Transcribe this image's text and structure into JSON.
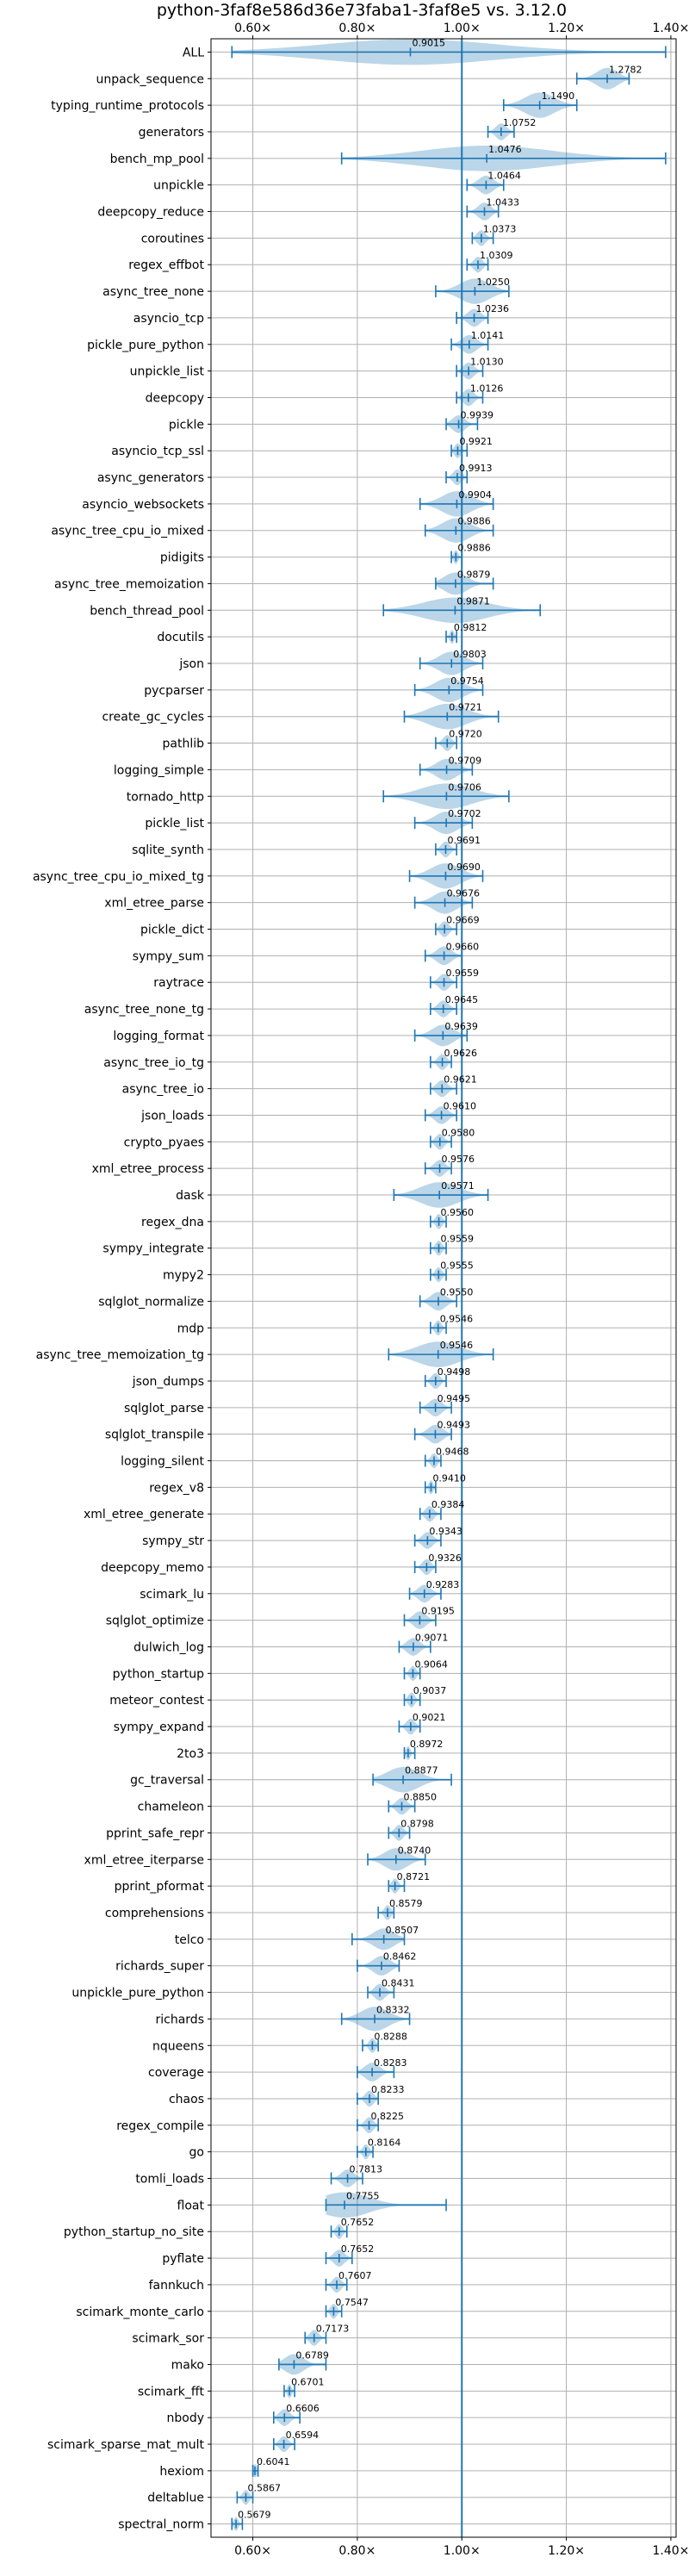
{
  "chart_data": {
    "type": "violin",
    "title": "python-3faf8e586d36e73faba1-3faf8e5 vs. 3.12.0",
    "xlabel": "",
    "ylabel": "",
    "xlim": [
      0.52,
      1.41
    ],
    "xticks": [
      0.6,
      0.8,
      1.0,
      1.2,
      1.4
    ],
    "xtick_labels": [
      "0.60×",
      "0.80×",
      "1.00×",
      "1.20×",
      "1.40×"
    ],
    "reference_x": 1.0,
    "grid": true,
    "xaxis_ticks_top_and_bottom": true,
    "color": "#1f77b4",
    "series": [
      {
        "name": "ALL",
        "value": 0.9015,
        "label": "0.9015",
        "low": 0.56,
        "high": 1.39
      },
      {
        "name": "unpack_sequence",
        "value": 1.2782,
        "label": "1.2782",
        "low": 1.22,
        "high": 1.32
      },
      {
        "name": "typing_runtime_protocols",
        "value": 1.149,
        "label": "1.1490",
        "low": 1.08,
        "high": 1.22
      },
      {
        "name": "generators",
        "value": 1.0752,
        "label": "1.0752",
        "low": 1.05,
        "high": 1.1
      },
      {
        "name": "bench_mp_pool",
        "value": 1.0476,
        "label": "1.0476",
        "low": 0.77,
        "high": 1.39
      },
      {
        "name": "unpickle",
        "value": 1.0464,
        "label": "1.0464",
        "low": 1.01,
        "high": 1.08
      },
      {
        "name": "deepcopy_reduce",
        "value": 1.0433,
        "label": "1.0433",
        "low": 1.01,
        "high": 1.07
      },
      {
        "name": "coroutines",
        "value": 1.0373,
        "label": "1.0373",
        "low": 1.02,
        "high": 1.06
      },
      {
        "name": "regex_effbot",
        "value": 1.0309,
        "label": "1.0309",
        "low": 1.01,
        "high": 1.05
      },
      {
        "name": "async_tree_none",
        "value": 1.025,
        "label": "1.0250",
        "low": 0.95,
        "high": 1.09
      },
      {
        "name": "asyncio_tcp",
        "value": 1.0236,
        "label": "1.0236",
        "low": 0.99,
        "high": 1.05
      },
      {
        "name": "pickle_pure_python",
        "value": 1.0141,
        "label": "1.0141",
        "low": 0.98,
        "high": 1.05
      },
      {
        "name": "unpickle_list",
        "value": 1.013,
        "label": "1.0130",
        "low": 0.99,
        "high": 1.04
      },
      {
        "name": "deepcopy",
        "value": 1.0126,
        "label": "1.0126",
        "low": 0.99,
        "high": 1.04
      },
      {
        "name": "pickle",
        "value": 0.9939,
        "label": "0.9939",
        "low": 0.97,
        "high": 1.03
      },
      {
        "name": "asyncio_tcp_ssl",
        "value": 0.9921,
        "label": "0.9921",
        "low": 0.98,
        "high": 1.01
      },
      {
        "name": "async_generators",
        "value": 0.9913,
        "label": "0.9913",
        "low": 0.97,
        "high": 1.01
      },
      {
        "name": "asyncio_websockets",
        "value": 0.9904,
        "label": "0.9904",
        "low": 0.92,
        "high": 1.06
      },
      {
        "name": "async_tree_cpu_io_mixed",
        "value": 0.9886,
        "label": "0.9886",
        "low": 0.93,
        "high": 1.06
      },
      {
        "name": "pidigits",
        "value": 0.9886,
        "label": "0.9886",
        "low": 0.98,
        "high": 1.0
      },
      {
        "name": "async_tree_memoization",
        "value": 0.9879,
        "label": "0.9879",
        "low": 0.95,
        "high": 1.06
      },
      {
        "name": "bench_thread_pool",
        "value": 0.9871,
        "label": "0.9871",
        "low": 0.85,
        "high": 1.15
      },
      {
        "name": "docutils",
        "value": 0.9812,
        "label": "0.9812",
        "low": 0.97,
        "high": 0.99
      },
      {
        "name": "json",
        "value": 0.9803,
        "label": "0.9803",
        "low": 0.92,
        "high": 1.04
      },
      {
        "name": "pycparser",
        "value": 0.9754,
        "label": "0.9754",
        "low": 0.91,
        "high": 1.04
      },
      {
        "name": "create_gc_cycles",
        "value": 0.9721,
        "label": "0.9721",
        "low": 0.89,
        "high": 1.07
      },
      {
        "name": "pathlib",
        "value": 0.972,
        "label": "0.9720",
        "low": 0.95,
        "high": 0.99
      },
      {
        "name": "logging_simple",
        "value": 0.9709,
        "label": "0.9709",
        "low": 0.92,
        "high": 1.02
      },
      {
        "name": "tornado_http",
        "value": 0.9706,
        "label": "0.9706",
        "low": 0.85,
        "high": 1.09
      },
      {
        "name": "pickle_list",
        "value": 0.9702,
        "label": "0.9702",
        "low": 0.91,
        "high": 1.02
      },
      {
        "name": "sqlite_synth",
        "value": 0.9691,
        "label": "0.9691",
        "low": 0.95,
        "high": 0.99
      },
      {
        "name": "async_tree_cpu_io_mixed_tg",
        "value": 0.969,
        "label": "0.9690",
        "low": 0.9,
        "high": 1.04
      },
      {
        "name": "xml_etree_parse",
        "value": 0.9676,
        "label": "0.9676",
        "low": 0.91,
        "high": 1.02
      },
      {
        "name": "pickle_dict",
        "value": 0.9669,
        "label": "0.9669",
        "low": 0.95,
        "high": 0.99
      },
      {
        "name": "sympy_sum",
        "value": 0.966,
        "label": "0.9660",
        "low": 0.93,
        "high": 1.0
      },
      {
        "name": "raytrace",
        "value": 0.9659,
        "label": "0.9659",
        "low": 0.94,
        "high": 0.99
      },
      {
        "name": "async_tree_none_tg",
        "value": 0.9645,
        "label": "0.9645",
        "low": 0.94,
        "high": 0.99
      },
      {
        "name": "logging_format",
        "value": 0.9639,
        "label": "0.9639",
        "low": 0.91,
        "high": 1.01
      },
      {
        "name": "async_tree_io_tg",
        "value": 0.9626,
        "label": "0.9626",
        "low": 0.94,
        "high": 0.98
      },
      {
        "name": "async_tree_io",
        "value": 0.9621,
        "label": "0.9621",
        "low": 0.94,
        "high": 0.99
      },
      {
        "name": "json_loads",
        "value": 0.961,
        "label": "0.9610",
        "low": 0.93,
        "high": 0.99
      },
      {
        "name": "crypto_pyaes",
        "value": 0.958,
        "label": "0.9580",
        "low": 0.94,
        "high": 0.98
      },
      {
        "name": "xml_etree_process",
        "value": 0.9576,
        "label": "0.9576",
        "low": 0.93,
        "high": 0.98
      },
      {
        "name": "dask",
        "value": 0.9571,
        "label": "0.9571",
        "low": 0.87,
        "high": 1.05
      },
      {
        "name": "regex_dna",
        "value": 0.956,
        "label": "0.9560",
        "low": 0.94,
        "high": 0.97
      },
      {
        "name": "sympy_integrate",
        "value": 0.9559,
        "label": "0.9559",
        "low": 0.94,
        "high": 0.97
      },
      {
        "name": "mypy2",
        "value": 0.9555,
        "label": "0.9555",
        "low": 0.94,
        "high": 0.97
      },
      {
        "name": "sqlglot_normalize",
        "value": 0.955,
        "label": "0.9550",
        "low": 0.92,
        "high": 0.99
      },
      {
        "name": "mdp",
        "value": 0.9546,
        "label": "0.9546",
        "low": 0.94,
        "high": 0.97
      },
      {
        "name": "async_tree_memoization_tg",
        "value": 0.9546,
        "label": "0.9546",
        "low": 0.86,
        "high": 1.06
      },
      {
        "name": "json_dumps",
        "value": 0.9498,
        "label": "0.9498",
        "low": 0.93,
        "high": 0.97
      },
      {
        "name": "sqlglot_parse",
        "value": 0.9495,
        "label": "0.9495",
        "low": 0.92,
        "high": 0.98
      },
      {
        "name": "sqlglot_transpile",
        "value": 0.9493,
        "label": "0.9493",
        "low": 0.91,
        "high": 0.98
      },
      {
        "name": "logging_silent",
        "value": 0.9468,
        "label": "0.9468",
        "low": 0.93,
        "high": 0.96
      },
      {
        "name": "regex_v8",
        "value": 0.941,
        "label": "0.9410",
        "low": 0.93,
        "high": 0.95
      },
      {
        "name": "xml_etree_generate",
        "value": 0.9384,
        "label": "0.9384",
        "low": 0.92,
        "high": 0.96
      },
      {
        "name": "sympy_str",
        "value": 0.9343,
        "label": "0.9343",
        "low": 0.91,
        "high": 0.96
      },
      {
        "name": "deepcopy_memo",
        "value": 0.9326,
        "label": "0.9326",
        "low": 0.91,
        "high": 0.95
      },
      {
        "name": "scimark_lu",
        "value": 0.9283,
        "label": "0.9283",
        "low": 0.9,
        "high": 0.96
      },
      {
        "name": "sqlglot_optimize",
        "value": 0.9195,
        "label": "0.9195",
        "low": 0.89,
        "high": 0.95
      },
      {
        "name": "dulwich_log",
        "value": 0.9071,
        "label": "0.9071",
        "low": 0.88,
        "high": 0.94
      },
      {
        "name": "python_startup",
        "value": 0.9064,
        "label": "0.9064",
        "low": 0.89,
        "high": 0.92
      },
      {
        "name": "meteor_contest",
        "value": 0.9037,
        "label": "0.9037",
        "low": 0.89,
        "high": 0.92
      },
      {
        "name": "sympy_expand",
        "value": 0.9021,
        "label": "0.9021",
        "low": 0.88,
        "high": 0.92
      },
      {
        "name": "2to3",
        "value": 0.8972,
        "label": "0.8972",
        "low": 0.89,
        "high": 0.91
      },
      {
        "name": "gc_traversal",
        "value": 0.8877,
        "label": "0.8877",
        "low": 0.83,
        "high": 0.98
      },
      {
        "name": "chameleon",
        "value": 0.885,
        "label": "0.8850",
        "low": 0.86,
        "high": 0.91
      },
      {
        "name": "pprint_safe_repr",
        "value": 0.8798,
        "label": "0.8798",
        "low": 0.86,
        "high": 0.9
      },
      {
        "name": "xml_etree_iterparse",
        "value": 0.874,
        "label": "0.8740",
        "low": 0.82,
        "high": 0.93
      },
      {
        "name": "pprint_pformat",
        "value": 0.8721,
        "label": "0.8721",
        "low": 0.86,
        "high": 0.89
      },
      {
        "name": "comprehensions",
        "value": 0.8579,
        "label": "0.8579",
        "low": 0.84,
        "high": 0.87
      },
      {
        "name": "telco",
        "value": 0.8507,
        "label": "0.8507",
        "low": 0.79,
        "high": 0.89
      },
      {
        "name": "richards_super",
        "value": 0.8462,
        "label": "0.8462",
        "low": 0.8,
        "high": 0.88
      },
      {
        "name": "unpickle_pure_python",
        "value": 0.8431,
        "label": "0.8431",
        "low": 0.82,
        "high": 0.87
      },
      {
        "name": "richards",
        "value": 0.8332,
        "label": "0.8332",
        "low": 0.77,
        "high": 0.9
      },
      {
        "name": "nqueens",
        "value": 0.8288,
        "label": "0.8288",
        "low": 0.81,
        "high": 0.84
      },
      {
        "name": "coverage",
        "value": 0.8283,
        "label": "0.8283",
        "low": 0.8,
        "high": 0.87
      },
      {
        "name": "chaos",
        "value": 0.8233,
        "label": "0.8233",
        "low": 0.8,
        "high": 0.84
      },
      {
        "name": "regex_compile",
        "value": 0.8225,
        "label": "0.8225",
        "low": 0.8,
        "high": 0.84
      },
      {
        "name": "go",
        "value": 0.8164,
        "label": "0.8164",
        "low": 0.8,
        "high": 0.83
      },
      {
        "name": "tomli_loads",
        "value": 0.7813,
        "label": "0.7813",
        "low": 0.75,
        "high": 0.81
      },
      {
        "name": "float",
        "value": 0.7755,
        "label": "0.7755",
        "low": 0.74,
        "high": 0.97
      },
      {
        "name": "python_startup_no_site",
        "value": 0.7652,
        "label": "0.7652",
        "low": 0.75,
        "high": 0.78
      },
      {
        "name": "pyflate",
        "value": 0.7652,
        "label": "0.7652",
        "low": 0.74,
        "high": 0.79
      },
      {
        "name": "fannkuch",
        "value": 0.7607,
        "label": "0.7607",
        "low": 0.74,
        "high": 0.78
      },
      {
        "name": "scimark_monte_carlo",
        "value": 0.7547,
        "label": "0.7547",
        "low": 0.74,
        "high": 0.77
      },
      {
        "name": "scimark_sor",
        "value": 0.7173,
        "label": "0.7173",
        "low": 0.7,
        "high": 0.74
      },
      {
        "name": "mako",
        "value": 0.6789,
        "label": "0.6789",
        "low": 0.65,
        "high": 0.74
      },
      {
        "name": "scimark_fft",
        "value": 0.6701,
        "label": "0.6701",
        "low": 0.66,
        "high": 0.68
      },
      {
        "name": "nbody",
        "value": 0.6606,
        "label": "0.6606",
        "low": 0.64,
        "high": 0.69
      },
      {
        "name": "scimark_sparse_mat_mult",
        "value": 0.6594,
        "label": "0.6594",
        "low": 0.64,
        "high": 0.68
      },
      {
        "name": "hexiom",
        "value": 0.6041,
        "label": "0.6041",
        "low": 0.6,
        "high": 0.61
      },
      {
        "name": "deltablue",
        "value": 0.5867,
        "label": "0.5867",
        "low": 0.57,
        "high": 0.6
      },
      {
        "name": "spectral_norm",
        "value": 0.5679,
        "label": "0.5679",
        "low": 0.56,
        "high": 0.58
      }
    ]
  }
}
